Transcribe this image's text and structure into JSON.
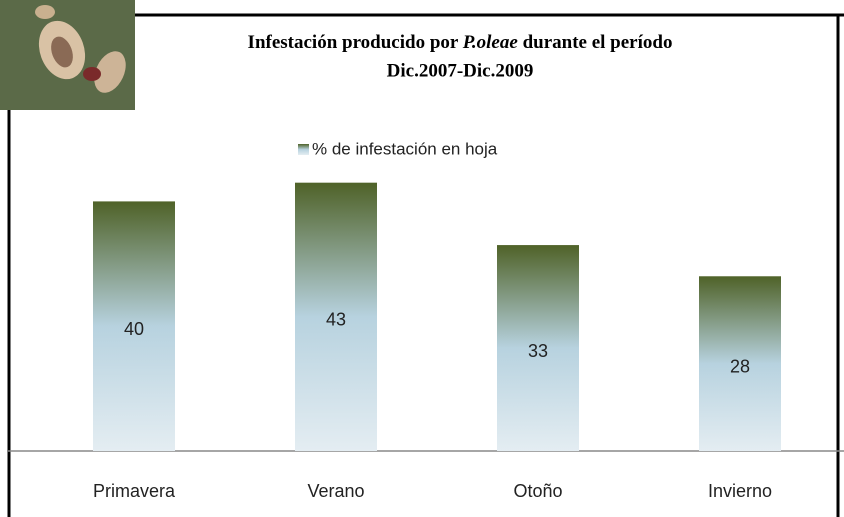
{
  "chart_data": {
    "type": "bar",
    "title": [
      "Infestación producido por",
      "P.oleae",
      "durante el período",
      "Dic.2007-Dic.2009"
    ],
    "legend": "% de infestación en hoja",
    "categories": [
      "Primavera",
      "Verano",
      "Otoño",
      "Invierno"
    ],
    "values": [
      40,
      43,
      33,
      28
    ],
    "color": "#4f6228",
    "ylim": [
      0,
      50
    ]
  }
}
